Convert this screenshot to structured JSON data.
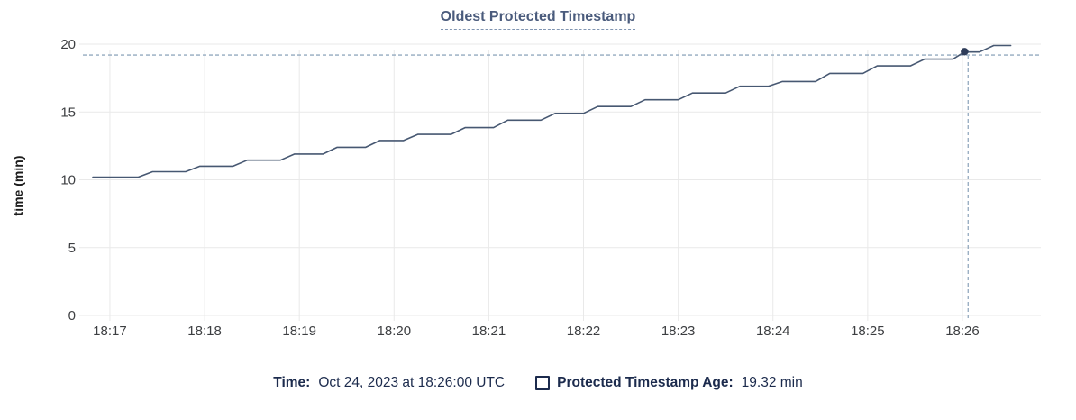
{
  "header": {
    "title": "Oldest Protected Timestamp"
  },
  "chart_data": {
    "type": "line",
    "title": "Oldest Protected Timestamp",
    "xlabel": "",
    "ylabel": "time (min)",
    "ylim": [
      0,
      20
    ],
    "yticks": [
      0,
      5,
      10,
      15,
      20
    ],
    "xlim": [
      16.715,
      26.828
    ],
    "xticks": {
      "values": [
        17,
        18,
        19,
        20,
        21,
        22,
        23,
        24,
        25,
        26
      ],
      "labels": [
        "18:17",
        "18:18",
        "18:19",
        "18:20",
        "18:21",
        "18:22",
        "18:23",
        "18:24",
        "18:25",
        "18:26"
      ]
    },
    "grid": true,
    "legend_position": "bottom",
    "series": [
      {
        "name": "Protected Timestamp Age",
        "color": "#475872",
        "points": [
          [
            16.82,
            10.2
          ],
          [
            17.3,
            10.2
          ],
          [
            17.45,
            10.6
          ],
          [
            17.8,
            10.6
          ],
          [
            17.95,
            11.0
          ],
          [
            18.3,
            11.0
          ],
          [
            18.45,
            11.45
          ],
          [
            18.8,
            11.45
          ],
          [
            18.95,
            11.9
          ],
          [
            19.25,
            11.9
          ],
          [
            19.4,
            12.4
          ],
          [
            19.7,
            12.4
          ],
          [
            19.85,
            12.9
          ],
          [
            20.1,
            12.9
          ],
          [
            20.25,
            13.35
          ],
          [
            20.6,
            13.35
          ],
          [
            20.75,
            13.85
          ],
          [
            21.05,
            13.85
          ],
          [
            21.2,
            14.4
          ],
          [
            21.55,
            14.4
          ],
          [
            21.7,
            14.9
          ],
          [
            22.0,
            14.9
          ],
          [
            22.15,
            15.4
          ],
          [
            22.5,
            15.4
          ],
          [
            22.65,
            15.9
          ],
          [
            23.0,
            15.9
          ],
          [
            23.15,
            16.4
          ],
          [
            23.5,
            16.4
          ],
          [
            23.65,
            16.9
          ],
          [
            23.95,
            16.9
          ],
          [
            24.1,
            17.25
          ],
          [
            24.45,
            17.25
          ],
          [
            24.6,
            17.85
          ],
          [
            24.95,
            17.85
          ],
          [
            25.1,
            18.4
          ],
          [
            25.45,
            18.4
          ],
          [
            25.6,
            18.9
          ],
          [
            25.9,
            18.9
          ],
          [
            26.02,
            19.42
          ],
          [
            26.18,
            19.42
          ],
          [
            26.33,
            19.9
          ],
          [
            26.51,
            19.9
          ]
        ]
      }
    ],
    "hover": {
      "t": 26.06,
      "dot_value": 19.45,
      "hline_value": 19.2,
      "time_reading": "18:26:00",
      "value_reading_min": 19.32
    }
  },
  "legend": {
    "time_label": "Time:",
    "time_value": "Oct 24, 2023 at 18:26:00 UTC",
    "series_label": "Protected Timestamp Age:",
    "series_value": "19.32 min"
  },
  "colors": {
    "line": "#475872",
    "hover_dot": "#2e3c59",
    "crosshair": "#94aabf",
    "grid": "#e9e9e9",
    "title_text": "#4a5b7c",
    "legend_text": "#1c2b4d",
    "tick_text": "#3d3f42"
  }
}
